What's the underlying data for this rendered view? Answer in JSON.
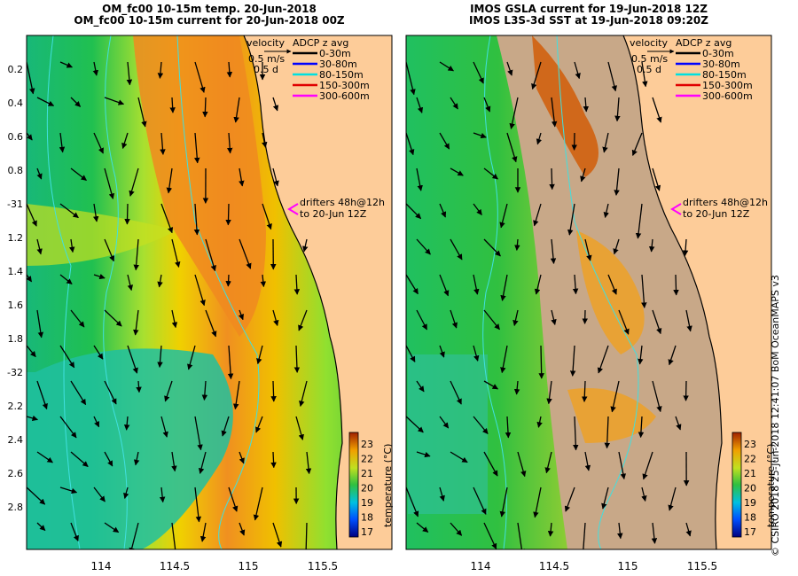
{
  "left_panel": {
    "title_line1": "OM_fc00 10-15m temp. 20-Jun-2018",
    "title_line2": "OM_fc00 10-15m current for 20-Jun-2018 00Z"
  },
  "right_panel": {
    "title_line1": "IMOS GSLA current for 19-Jun-2018 12Z",
    "title_line2": "IMOS L3S-3d SST at 19-Jun-2018 09:20Z"
  },
  "y_axis_labels": [
    "0.2",
    "0.4",
    "0.6",
    "0.8",
    "-31",
    "1.2",
    "1.4",
    "1.6",
    "1.8",
    "-32",
    "2.2",
    "2.4",
    "2.6",
    "2.8"
  ],
  "x_axis_labels": [
    "114",
    "114.5",
    "115",
    "115.5"
  ],
  "legend": {
    "velocity_label": "velocity",
    "velocity_scale_1": "0.5 m/s",
    "velocity_scale_2": "0.5 d",
    "adcp_title": "ADCP z avg",
    "adcp_items": [
      {
        "label": "0-30m",
        "color": "#000000"
      },
      {
        "label": "30-80m",
        "color": "#0000ff"
      },
      {
        "label": "80-150m",
        "color": "#00e0e0"
      },
      {
        "label": "150-300m",
        "color": "#e00000"
      },
      {
        "label": "300-600m",
        "color": "#ff00ff"
      }
    ],
    "drifters_line1": "drifters 48h@12h",
    "drifters_line2": "to 20-Jun 12Z",
    "drifters_color": "#ff00ff"
  },
  "colorbar": {
    "ticks": [
      "23",
      "22",
      "21",
      "20",
      "19",
      "18",
      "17"
    ],
    "label": "temperature (°C)"
  },
  "colors": {
    "land": "#fdcc99",
    "cloud": "#c8a888",
    "contour": "#40e0e0",
    "coast": "#000000"
  },
  "credit": "© CSIRO 2018  25-Jun-2018 12:41:07 BoM OceanMAPS v3"
}
